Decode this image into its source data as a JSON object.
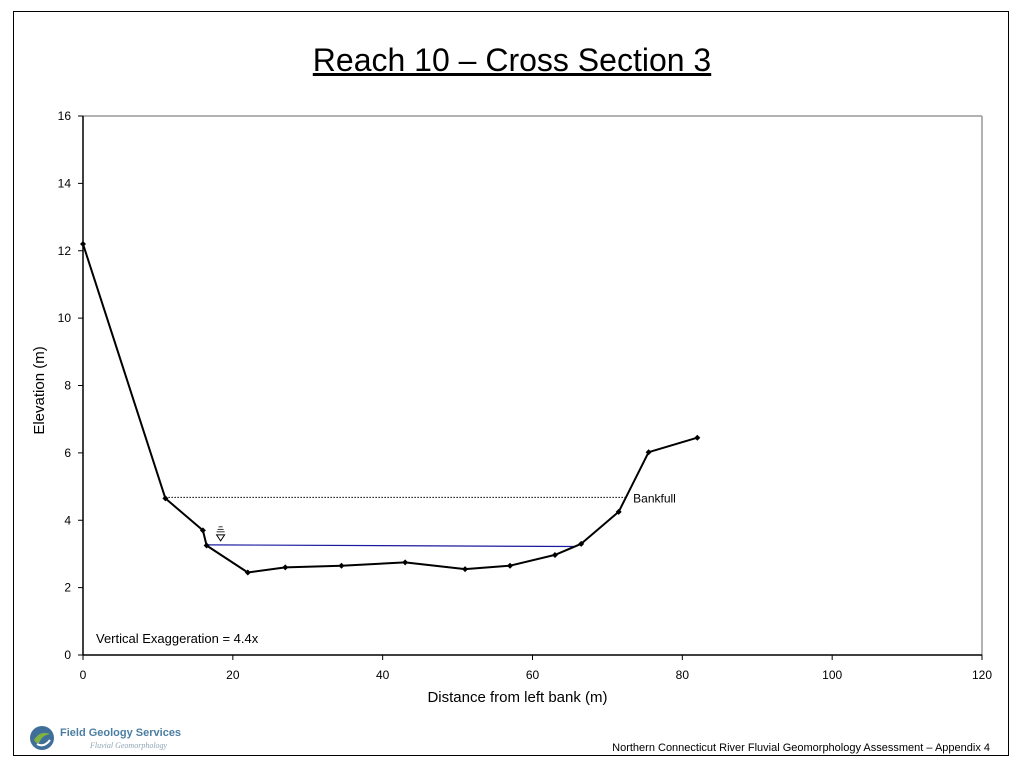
{
  "page": {
    "title": "Reach 10 – Cross Section 3",
    "footer": "Northern Connecticut River Fluvial Geomorphology Assessment – Appendix 4",
    "logo": {
      "name": "Field Geology Services",
      "tagline": "Fluvial Geomorphology"
    }
  },
  "chart_data": {
    "type": "line",
    "title": "Reach 10 – Cross Section 3",
    "xlabel": "Distance from left bank (m)",
    "ylabel": "Elevation (m)",
    "xlim": [
      0,
      120
    ],
    "ylim": [
      0,
      16
    ],
    "xticks": [
      0,
      20,
      40,
      60,
      80,
      100,
      120
    ],
    "yticks": [
      0,
      2,
      4,
      6,
      8,
      10,
      12,
      14,
      16
    ],
    "grid": false,
    "legend": "none",
    "series": [
      {
        "color": "#000000",
        "markers": true,
        "x": [
          0,
          11,
          16,
          16.5,
          22,
          27,
          34.5,
          43,
          51,
          57,
          63,
          66.5,
          71.5,
          75.5,
          82
        ],
        "y": [
          12.2,
          4.65,
          3.7,
          3.25,
          2.45,
          2.6,
          2.65,
          2.75,
          2.55,
          2.65,
          2.97,
          3.3,
          4.25,
          6.02,
          6.45
        ]
      }
    ],
    "water_surface": {
      "x": [
        16.5,
        65.5
      ],
      "y": [
        3.27,
        3.22
      ],
      "color": "#1a1aa0"
    },
    "bankfull": {
      "x": [
        11,
        72.5
      ],
      "y": 4.68,
      "label": "Bankfull"
    },
    "annotation": "Vertical Exaggeration = 4.4x"
  }
}
